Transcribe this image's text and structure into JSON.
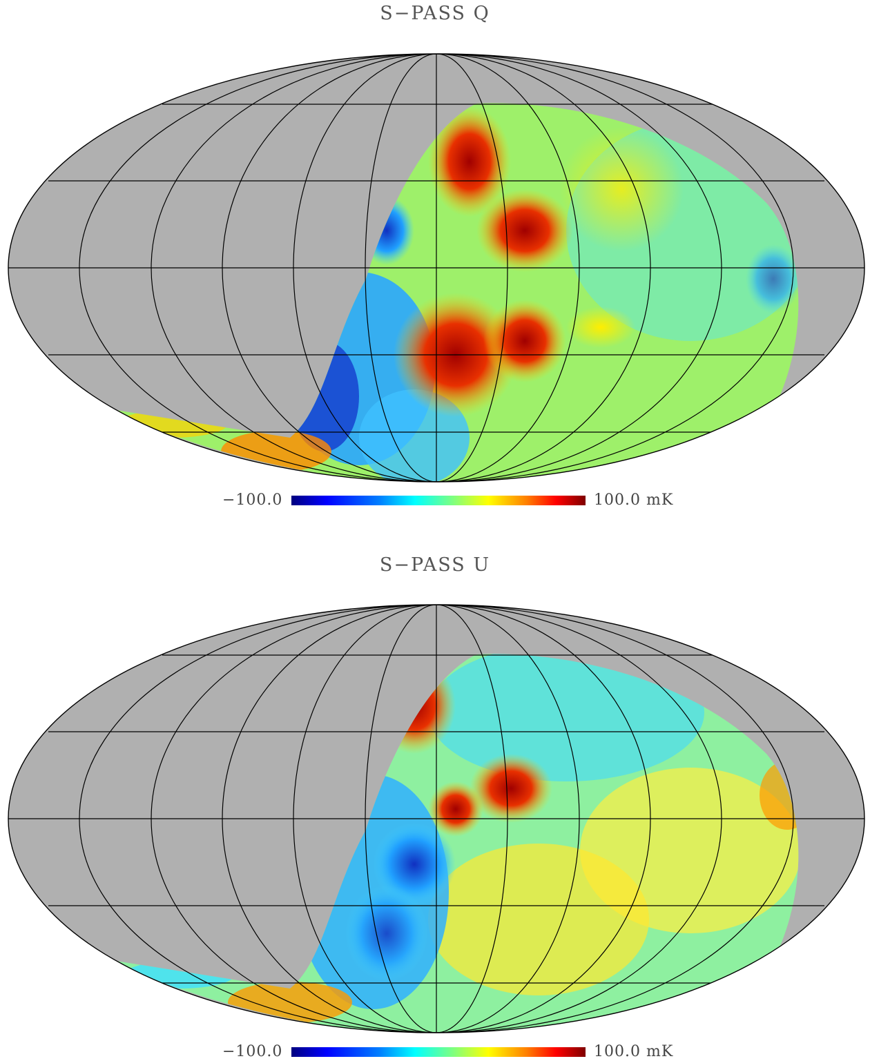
{
  "panels": [
    {
      "title": "S−PASS Q",
      "colorbar": {
        "min_label": "−100.0",
        "max_label": "100.0 mK",
        "min": -100.0,
        "max": 100.0,
        "unit": "mK"
      },
      "colormap": "jet",
      "projection": "Mollweide",
      "masked_color": "#b0b0b0"
    },
    {
      "title": "S−PASS U",
      "colorbar": {
        "min_label": "−100.0",
        "max_label": "100.0 mK",
        "min": -100.0,
        "max": 100.0,
        "unit": "mK"
      },
      "colormap": "jet",
      "projection": "Mollweide",
      "masked_color": "#b0b0b0"
    }
  ]
}
